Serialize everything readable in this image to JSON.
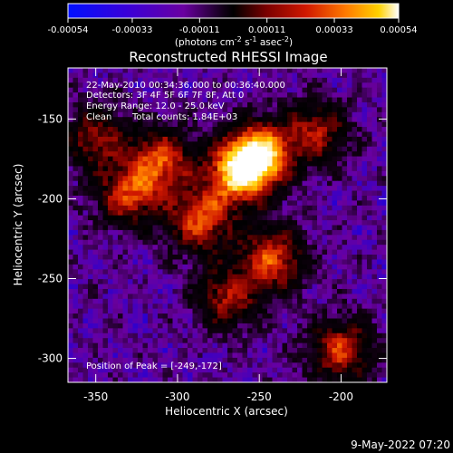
{
  "colorbar": {
    "tick_labels": [
      "-0.00054",
      "-0.00033",
      "-0.00011",
      "0.00011",
      "0.00033",
      "0.00054"
    ],
    "tick_values": [
      -0.00054,
      -0.00033,
      -0.00011,
      0.00011,
      0.00033,
      0.00054
    ],
    "range": [
      -0.00054,
      0.00054
    ],
    "units_label": "(photons cm",
    "units_exp1": "-2",
    "units_mid": " s",
    "units_exp2": "-1",
    "units_mid2": " asec",
    "units_exp3": "-2",
    "units_end": ")",
    "colors": [
      "#0010ff",
      "#2a00d0",
      "#6a00a0",
      "#100010",
      "#000000",
      "#7a0000",
      "#d01800",
      "#ff7a00",
      "#ffd000",
      "#ffffff"
    ]
  },
  "chart_data": {
    "type": "heatmap",
    "title": "Reconstructed RHESSI Image",
    "xlabel": "Heliocentric X (arcsec)",
    "ylabel": "Heliocentric Y (arcsec)",
    "xlim": [
      -367,
      -172
    ],
    "ylim": [
      -315,
      -118
    ],
    "xticks": [
      -350,
      -300,
      -250,
      -200
    ],
    "xtick_labels": [
      "-350",
      "-300",
      "-250",
      "-200"
    ],
    "yticks": [
      -150,
      -200,
      -250,
      -300
    ],
    "ytick_labels": [
      "-150",
      "-200",
      "-250",
      "-300"
    ],
    "peak_position": [
      -249,
      -172
    ],
    "bright_features": [
      {
        "x": -250,
        "y": -172,
        "intensity": 1.0
      },
      {
        "x": -263,
        "y": -185,
        "intensity": 0.85
      },
      {
        "x": -310,
        "y": -176,
        "intensity": 0.7
      },
      {
        "x": -330,
        "y": -198,
        "intensity": 0.65
      },
      {
        "x": -286,
        "y": -214,
        "intensity": 0.7
      },
      {
        "x": -242,
        "y": -238,
        "intensity": 0.7
      },
      {
        "x": -270,
        "y": -262,
        "intensity": 0.55
      },
      {
        "x": -215,
        "y": -158,
        "intensity": 0.55
      },
      {
        "x": -200,
        "y": -295,
        "intensity": 0.65
      },
      {
        "x": -350,
        "y": -162,
        "intensity": 0.5
      }
    ]
  },
  "info": {
    "time_range": "22-May-2010 00:34:36.000 to 00:36:40.000",
    "detectors": "Detectors: 3F 4F 5F 6F 7F 8F, Att 0",
    "energy": "Energy Range: 12.0 - 25.0 keV",
    "method": "Clean",
    "counts": "Total counts: 1.84E+03",
    "peak": "Position of Peak = [-249,-172]"
  },
  "footer": {
    "timestamp": "9-May-2022 07:20"
  }
}
